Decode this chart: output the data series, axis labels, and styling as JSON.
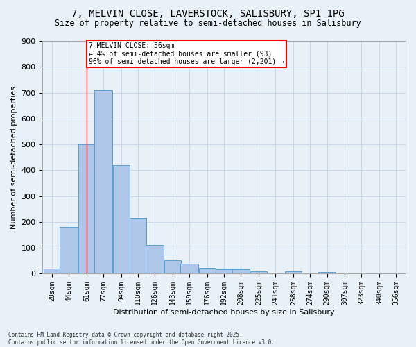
{
  "title1": "7, MELVIN CLOSE, LAVERSTOCK, SALISBURY, SP1 1PG",
  "title2": "Size of property relative to semi-detached houses in Salisbury",
  "xlabel": "Distribution of semi-detached houses by size in Salisbury",
  "ylabel": "Number of semi-detached properties",
  "bin_labels": [
    "28sqm",
    "44sqm",
    "61sqm",
    "77sqm",
    "94sqm",
    "110sqm",
    "126sqm",
    "143sqm",
    "159sqm",
    "176sqm",
    "192sqm",
    "208sqm",
    "225sqm",
    "241sqm",
    "258sqm",
    "274sqm",
    "290sqm",
    "307sqm",
    "323sqm",
    "340sqm",
    "356sqm"
  ],
  "bar_values": [
    20,
    180,
    500,
    710,
    420,
    215,
    110,
    52,
    40,
    22,
    18,
    18,
    10,
    0,
    8,
    0,
    7,
    0,
    0,
    0,
    0
  ],
  "bar_color": "#aec6e8",
  "bar_edge_color": "#5a9fd4",
  "subject_pct_smaller": 4,
  "subject_count_smaller": 93,
  "subject_pct_larger": 96,
  "subject_count_larger": 2201,
  "ylim": [
    0,
    900
  ],
  "yticks": [
    0,
    100,
    200,
    300,
    400,
    500,
    600,
    700,
    800,
    900
  ],
  "grid_color": "#c8d8ea",
  "background_color": "#e8f0f8",
  "footnote": "Contains HM Land Registry data © Crown copyright and database right 2025.\nContains public sector information licensed under the Open Government Licence v3.0."
}
